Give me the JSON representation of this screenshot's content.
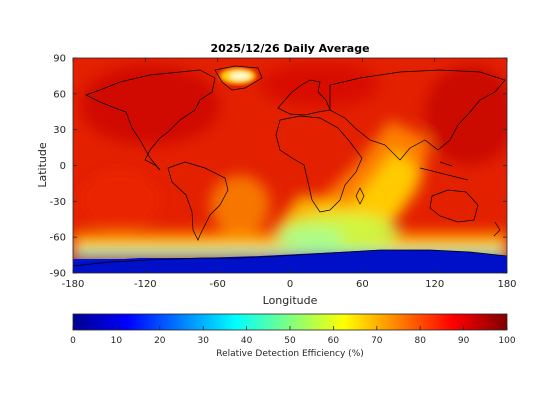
{
  "chart_data": {
    "type": "heatmap",
    "title": "2025/12/26 Daily Average",
    "xlabel": "Longitude",
    "ylabel": "Latitude",
    "xlim": [
      -180,
      180
    ],
    "ylim": [
      -90,
      90
    ],
    "xticks": [
      -180,
      -120,
      -60,
      0,
      60,
      120,
      180
    ],
    "yticks": [
      -90,
      -60,
      -30,
      0,
      30,
      60,
      90
    ],
    "colorbar": {
      "label": "Relative Detection Efficiency (%)",
      "range": [
        0,
        100
      ],
      "ticks": [
        0,
        10,
        20,
        30,
        40,
        50,
        60,
        70,
        80,
        90,
        100
      ],
      "colormap": "jet"
    },
    "coastlines": true,
    "grid": false
  }
}
